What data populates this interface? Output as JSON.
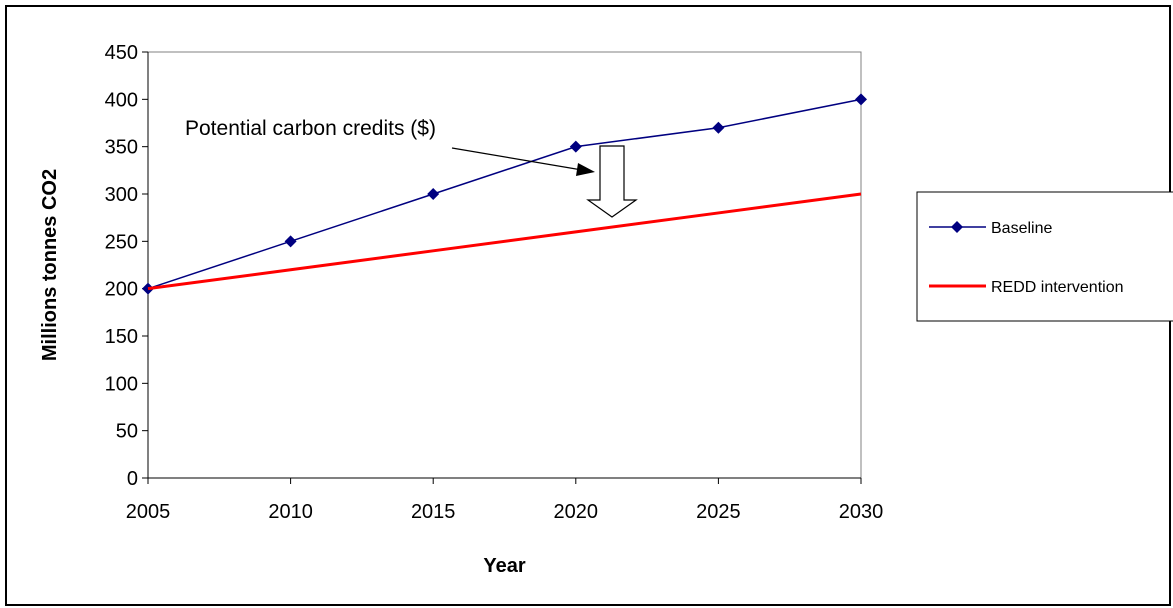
{
  "chart_data": {
    "type": "line",
    "title": "",
    "xlabel": "Year",
    "ylabel": "Millions tonnes CO2",
    "x": [
      2005,
      2010,
      2015,
      2020,
      2025,
      2030
    ],
    "xlim": [
      2005,
      2030
    ],
    "ylim": [
      0,
      450
    ],
    "yticks": [
      0,
      50,
      100,
      150,
      200,
      250,
      300,
      350,
      400,
      450
    ],
    "grid": false,
    "legend_position": "right",
    "series": [
      {
        "name": "Baseline",
        "values": [
          200,
          250,
          300,
          350,
          370,
          400
        ],
        "color": "#000080",
        "marker": "diamond"
      },
      {
        "name": "REDD intervention",
        "values": [
          200,
          220,
          240,
          260,
          280,
          300
        ],
        "color": "#FF0000",
        "marker": "none"
      }
    ],
    "annotations": [
      {
        "text": "Potential carbon credits ($)"
      }
    ]
  }
}
